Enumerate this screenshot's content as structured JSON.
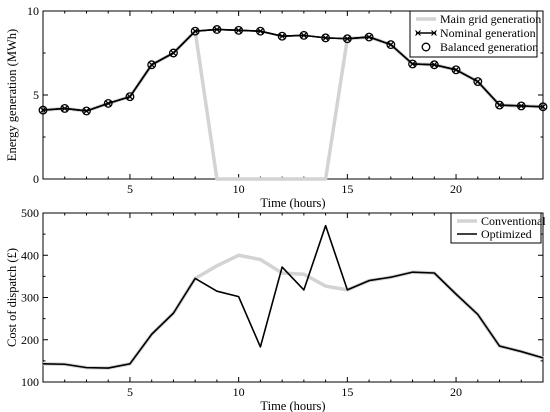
{
  "chart_data": [
    {
      "type": "line",
      "xlabel": "Time (hours)",
      "ylabel": "Energy generation (MWh)",
      "xlim": [
        1,
        24
      ],
      "ylim": [
        0,
        10
      ],
      "xticks": [
        5,
        10,
        15,
        20
      ],
      "yticks": [
        0,
        5,
        10
      ],
      "grid": false,
      "legend_position": "top-right",
      "x": [
        1,
        2,
        3,
        4,
        5,
        6,
        7,
        8,
        9,
        10,
        11,
        12,
        13,
        14,
        15,
        16,
        17,
        18,
        19,
        20,
        21,
        22,
        23,
        24
      ],
      "series": [
        {
          "name": "Main grid generation",
          "color": "#d3d3d3",
          "marker": "none",
          "values": [
            4.1,
            4.2,
            4.05,
            4.5,
            4.9,
            6.8,
            7.5,
            8.8,
            0,
            0,
            0,
            0,
            0,
            0,
            8.35,
            8.45,
            8.0,
            6.85,
            6.8,
            6.5,
            5.8,
            4.4,
            4.35,
            4.3
          ]
        },
        {
          "name": "Nominal generation",
          "color": "#000000",
          "marker": "x",
          "values": [
            4.1,
            4.2,
            4.05,
            4.5,
            4.9,
            6.8,
            7.5,
            8.8,
            8.9,
            8.85,
            8.8,
            8.5,
            8.55,
            8.4,
            8.35,
            8.45,
            8.0,
            6.85,
            6.8,
            6.5,
            5.8,
            4.4,
            4.35,
            4.3
          ]
        },
        {
          "name": "Balanced generation",
          "color": "#000000",
          "marker": "o",
          "values": [
            4.1,
            4.2,
            4.05,
            4.5,
            4.9,
            6.8,
            7.5,
            8.8,
            8.9,
            8.85,
            8.8,
            8.5,
            8.55,
            8.4,
            8.35,
            8.45,
            8.0,
            6.85,
            6.8,
            6.5,
            5.8,
            4.4,
            4.35,
            4.3
          ]
        }
      ]
    },
    {
      "type": "line",
      "xlabel": "Time (hours)",
      "ylabel": "Cost of dispatch (£)",
      "xlim": [
        1,
        24
      ],
      "ylim": [
        100,
        500
      ],
      "xticks": [
        5,
        10,
        15,
        20
      ],
      "yticks": [
        100,
        200,
        300,
        400,
        500
      ],
      "grid": false,
      "legend_position": "top-right",
      "x": [
        1,
        2,
        3,
        4,
        5,
        6,
        7,
        8,
        9,
        10,
        11,
        12,
        13,
        14,
        15,
        16,
        17,
        18,
        19,
        20,
        21,
        22,
        23,
        24
      ],
      "series": [
        {
          "name": "Conventional",
          "color": "#d3d3d3",
          "values": [
            143,
            142,
            134,
            133,
            143,
            213,
            263,
            345,
            375,
            400,
            390,
            358,
            355,
            327,
            318,
            340,
            348,
            360,
            358,
            308,
            260,
            185,
            172,
            157
          ]
        },
        {
          "name": "Optimized",
          "color": "#000000",
          "values": [
            143,
            142,
            134,
            133,
            143,
            213,
            263,
            345,
            315,
            302,
            183,
            372,
            318,
            470,
            318,
            340,
            348,
            360,
            358,
            308,
            260,
            185,
            172,
            157
          ]
        }
      ]
    }
  ]
}
